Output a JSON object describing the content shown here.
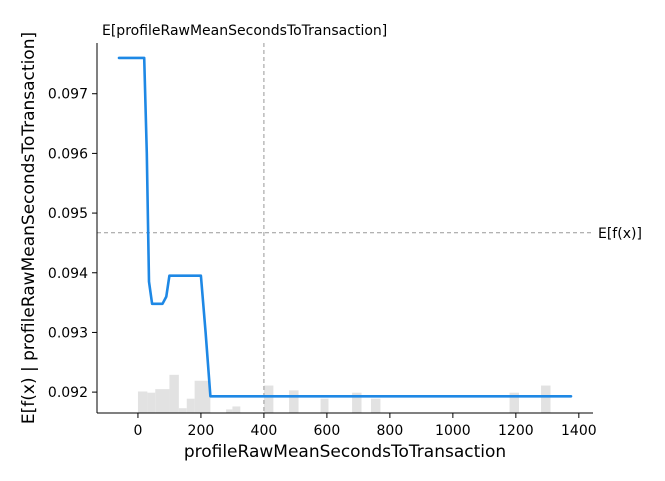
{
  "chart_data": {
    "type": "line",
    "title": "",
    "top_label": "E[profileRawMeanSecondsToTransaction]",
    "xlabel": "profileRawMeanSecondsToTransaction",
    "ylabel": "E[f(x) | profileRawMeanSecondsToTransaction]",
    "xlim": [
      -130,
      1445
    ],
    "ylim": [
      0.09165,
      0.09785
    ],
    "x_ticks": [
      0,
      200,
      400,
      600,
      800,
      1000,
      1200,
      1400
    ],
    "x_tick_labels": [
      "0",
      "200",
      "400",
      "600",
      "800",
      "1000",
      "1200",
      "1400"
    ],
    "y_ticks": [
      0.092,
      0.093,
      0.094,
      0.095,
      0.096,
      0.097
    ],
    "y_tick_labels": [
      "0.092",
      "0.093",
      "0.094",
      "0.095",
      "0.096",
      "0.097"
    ],
    "grid": false,
    "series": [
      {
        "color": "#1e88e5",
        "x": [
          -60,
          20,
          28,
          35,
          45,
          55,
          65,
          78,
          90,
          100,
          110,
          200,
          215,
          230,
          1375
        ],
        "y": [
          0.0976,
          0.0976,
          0.096,
          0.09385,
          0.09348,
          0.09348,
          0.09348,
          0.09348,
          0.0936,
          0.09395,
          0.09395,
          0.09395,
          0.093,
          0.09193,
          0.09193
        ]
      }
    ],
    "reference_lines": [
      {
        "orientation": "horizontal",
        "value": 0.09467,
        "label": "E[f(x)]",
        "color": "#999999"
      },
      {
        "orientation": "vertical",
        "value": 400,
        "label": "E[profileRawMeanSecondsToTransaction]",
        "color": "#999999"
      }
    ],
    "histogram": {
      "color": "#e2e2e2",
      "bins": [
        {
          "x0": 0,
          "x1": 30,
          "height": 0.00036
        },
        {
          "x0": 30,
          "x1": 55,
          "height": 0.00034
        },
        {
          "x0": 55,
          "x1": 100,
          "height": 0.0004
        },
        {
          "x0": 100,
          "x1": 130,
          "height": 0.00064
        },
        {
          "x0": 130,
          "x1": 155,
          "height": 8e-05
        },
        {
          "x0": 155,
          "x1": 180,
          "height": 0.00024
        },
        {
          "x0": 180,
          "x1": 230,
          "height": 0.00054
        },
        {
          "x0": 280,
          "x1": 300,
          "height": 6e-05
        },
        {
          "x0": 300,
          "x1": 325,
          "height": 0.00011
        },
        {
          "x0": 400,
          "x1": 430,
          "height": 0.00046
        },
        {
          "x0": 480,
          "x1": 510,
          "height": 0.00038
        },
        {
          "x0": 580,
          "x1": 605,
          "height": 0.00024
        },
        {
          "x0": 680,
          "x1": 710,
          "height": 0.00034
        },
        {
          "x0": 740,
          "x1": 770,
          "height": 0.00024
        },
        {
          "x0": 1180,
          "x1": 1210,
          "height": 0.00034
        },
        {
          "x0": 1280,
          "x1": 1310,
          "height": 0.00046
        }
      ]
    }
  }
}
